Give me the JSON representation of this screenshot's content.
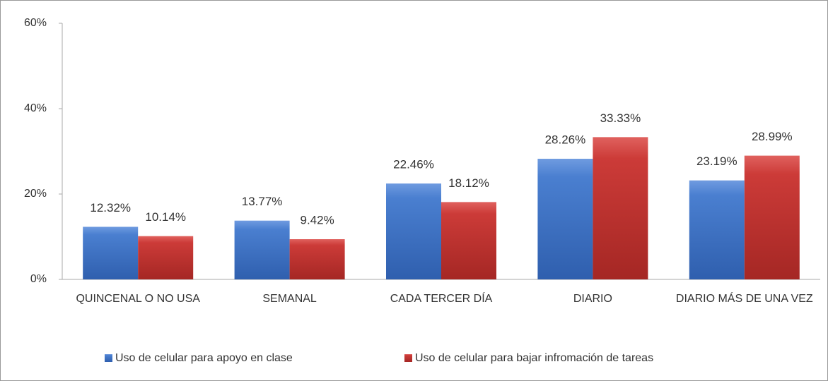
{
  "chart_data": {
    "type": "bar",
    "categories": [
      "QUINCENAL O NO USA",
      "SEMANAL",
      "CADA TERCER DÍA",
      "DIARIO",
      "DIARIO MÁS DE UNA VEZ"
    ],
    "series": [
      {
        "name": "Uso de celular para apoyo en clase",
        "color": "#4a7fd0",
        "values": [
          12.32,
          13.77,
          22.46,
          28.26,
          23.19
        ],
        "value_labels": [
          "12.32%",
          "13.77%",
          "22.46%",
          "28.26%",
          "23.19%"
        ]
      },
      {
        "name": "Uso de celular para bajar infromación de tareas",
        "color": "#cc3b38",
        "values": [
          10.14,
          9.42,
          18.12,
          33.33,
          28.99
        ],
        "value_labels": [
          "10.14%",
          "9.42%",
          "18.12%",
          "33.33%",
          "28.99%"
        ]
      }
    ],
    "ylim": [
      0,
      60
    ],
    "yticks": [
      {
        "value": 0,
        "label": "0%"
      },
      {
        "value": 20,
        "label": "20%"
      },
      {
        "value": 40,
        "label": "40%"
      },
      {
        "value": 60,
        "label": "60%"
      }
    ],
    "grid": false,
    "legend": "bottom"
  }
}
